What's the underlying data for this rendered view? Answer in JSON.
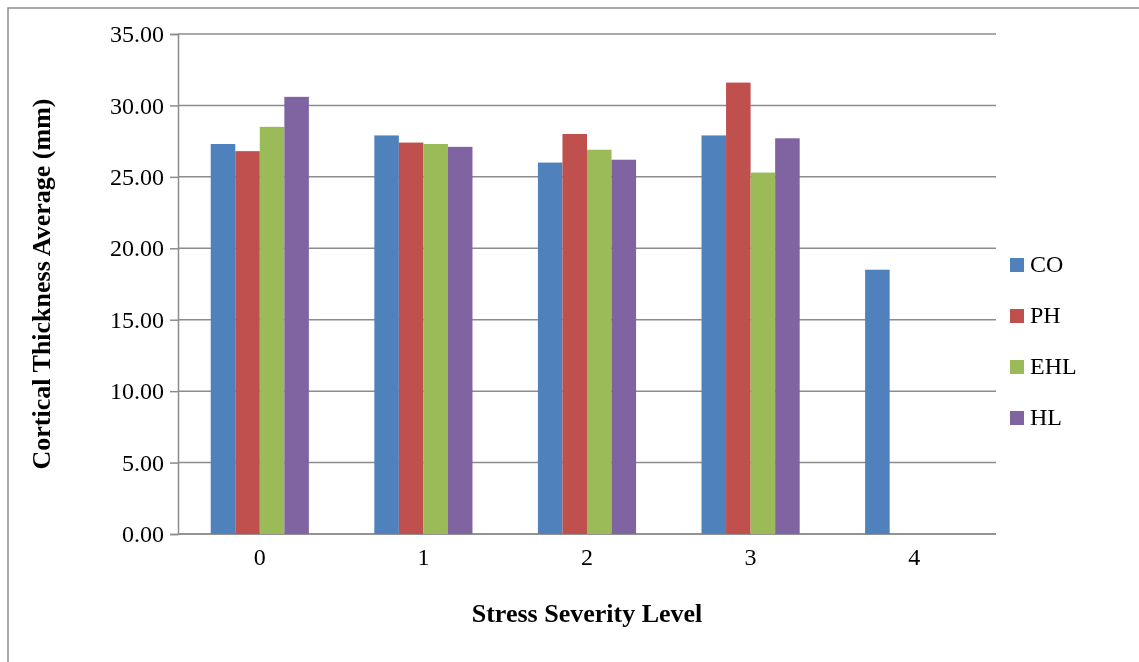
{
  "chart_data": {
    "type": "bar",
    "xlabel": "Stress Severity Level",
    "ylabel": "Cortical Thickness Average (mm)",
    "categories": [
      "0",
      "1",
      "2",
      "3",
      "4"
    ],
    "series": [
      {
        "name": "CO",
        "color": "#4f81bd",
        "values": [
          27.3,
          27.9,
          26.0,
          27.9,
          18.5
        ]
      },
      {
        "name": "PH",
        "color": "#c0504d",
        "values": [
          26.8,
          27.4,
          28.0,
          31.6,
          null
        ]
      },
      {
        "name": "EHL",
        "color": "#9bbb59",
        "values": [
          28.5,
          27.3,
          26.9,
          25.3,
          null
        ]
      },
      {
        "name": "HL",
        "color": "#8064a2",
        "values": [
          30.6,
          27.1,
          26.2,
          27.7,
          null
        ]
      }
    ],
    "ylim": [
      0,
      35
    ],
    "yticks": [
      {
        "value": 0,
        "label": "0.00"
      },
      {
        "value": 5,
        "label": "5.00"
      },
      {
        "value": 10,
        "label": "10.00"
      },
      {
        "value": 15,
        "label": "15.00"
      },
      {
        "value": 20,
        "label": "20.00"
      },
      {
        "value": 25,
        "label": "25.00"
      },
      {
        "value": 30,
        "label": "30.00"
      },
      {
        "value": 35,
        "label": "35.00"
      }
    ],
    "grid": "y",
    "legend": "right"
  }
}
